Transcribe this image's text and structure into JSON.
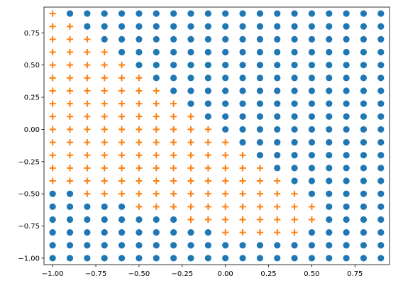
{
  "chart_data": {
    "type": "scatter",
    "title": "",
    "xlabel": "",
    "ylabel": "",
    "xlim": [
      -1.05,
      0.95
    ],
    "ylim": [
      -1.05,
      0.95
    ],
    "grid": false,
    "legend": "none",
    "x_ticks": [
      -1.0,
      -0.75,
      -0.5,
      -0.25,
      0.0,
      0.25,
      0.5,
      0.75
    ],
    "x_tick_labels": [
      "−1.00",
      "−0.75",
      "−0.50",
      "−0.25",
      "0.00",
      "0.25",
      "0.50",
      "0.75"
    ],
    "y_ticks": [
      -1.0,
      -0.75,
      -0.5,
      -0.25,
      0.0,
      0.25,
      0.5,
      0.75
    ],
    "y_tick_labels": [
      "−1.00",
      "−0.75",
      "−0.50",
      "−0.25",
      "0.00",
      "0.25",
      "0.50",
      "0.75"
    ],
    "grid_x": [
      -1.0,
      -0.9,
      -0.8,
      -0.7,
      -0.6,
      -0.5,
      -0.4,
      -0.3,
      -0.2,
      -0.1,
      0.0,
      0.1,
      0.2,
      0.3,
      0.4,
      0.5,
      0.6,
      0.7,
      0.8,
      0.9
    ],
    "grid_y": [
      0.9,
      0.8,
      0.7,
      0.6,
      0.5,
      0.4,
      0.3,
      0.2,
      0.1,
      0.0,
      -0.1,
      -0.2,
      -0.3,
      -0.4,
      -0.5,
      -0.6,
      -0.7,
      -0.8,
      -0.9,
      -1.0
    ],
    "class_rows": [
      "POOOOOOOOOOOOOOOOOOO",
      "PPOOOOOOOOOOOOOOOOOO",
      "PPPOOOOOOOOOOOOOOOOO",
      "PPPPOOOOOOOOOOOOOOOO",
      "PPPPPOOOOOOOOOOOOOOO",
      "PPPPPPOOOOOOOOOOOOOO",
      "PPPPPPPOOOOOOOOOOOOO",
      "PPPPPPPPOOOOOOOOOOOO",
      "PPPPPPPPPOOOOOOOOOOO",
      "PPPPPPPPPPOOOOOOOOOO",
      "PPPPPPPPPPPOOOOOOOOO",
      "PPPPPPPPPPPPOOOOOOOO",
      "PPPPPPPPPPPPPOOOOOOO",
      "PPPPPPPPPPPPPPOOOOOO",
      "OOPPPPPPPPPPPPPOOOOO",
      "OOOOOPPPPPPPPPPPOOOO",
      "OOOOOOOOPPPPPPPPOOOO",
      "OOOOOOOOOOPPPPPOOOOO",
      "OOOOOOOOOOOOOOOOOOOO",
      "OOOOOOOOOOOOOOOOOOOO"
    ],
    "series": [
      {
        "marker": "circle",
        "color": "#1f77b4"
      },
      {
        "marker": "plus",
        "color": "#ff7f0e"
      }
    ]
  }
}
